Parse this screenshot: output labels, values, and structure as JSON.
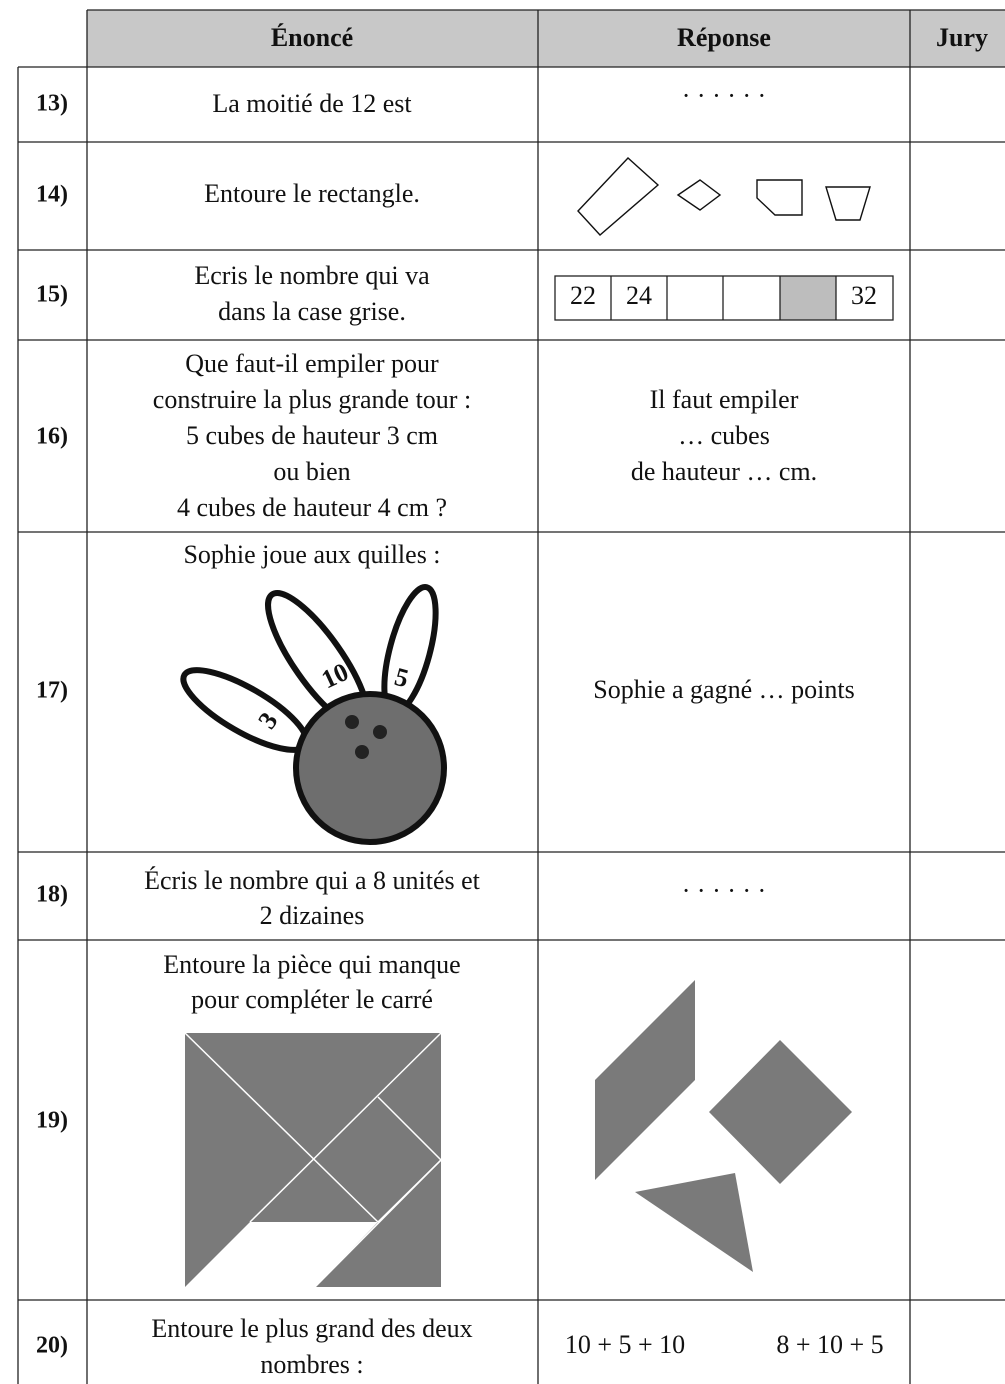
{
  "header": {
    "columns": [
      "Énoncé",
      "Réponse",
      "Jury"
    ]
  },
  "rows": [
    {
      "number": "13)",
      "statement": [
        "La moitié de 12 est"
      ],
      "answer": [
        "· · · · · ·"
      ]
    },
    {
      "number": "14)",
      "statement": [
        "Entoure le rectangle."
      ]
    },
    {
      "number": "15)",
      "statement": [
        "Ecris le nombre qui va",
        "dans la case grise."
      ],
      "answer_strip": [
        "22",
        "24",
        "32"
      ]
    },
    {
      "number": "16)",
      "statement": [
        "Que faut-il empiler pour",
        "construire la plus grande tour :",
        "5 cubes de hauteur 3 cm",
        "ou bien",
        "4 cubes de hauteur 4 cm ?"
      ],
      "answer": [
        "Il faut empiler",
        "… cubes",
        "de hauteur … cm."
      ]
    },
    {
      "number": "17)",
      "statement": [
        "Sophie joue aux quilles :"
      ],
      "pins": [
        "3",
        "10",
        "5"
      ],
      "answer": [
        "Sophie a gagné … points"
      ]
    },
    {
      "number": "18)",
      "statement": [
        "Écris le nombre qui a 8 unités et",
        "2 dizaines"
      ],
      "answer": [
        "· · · · · ·"
      ]
    },
    {
      "number": "19)",
      "statement": [
        "Entoure la pièce qui manque",
        "pour compléter le carré"
      ]
    },
    {
      "number": "20)",
      "statement": [
        "Entoure le plus grand des deux",
        "nombres :"
      ],
      "answer": [
        "10 + 5 + 10",
        "8 + 10 + 5"
      ]
    }
  ]
}
